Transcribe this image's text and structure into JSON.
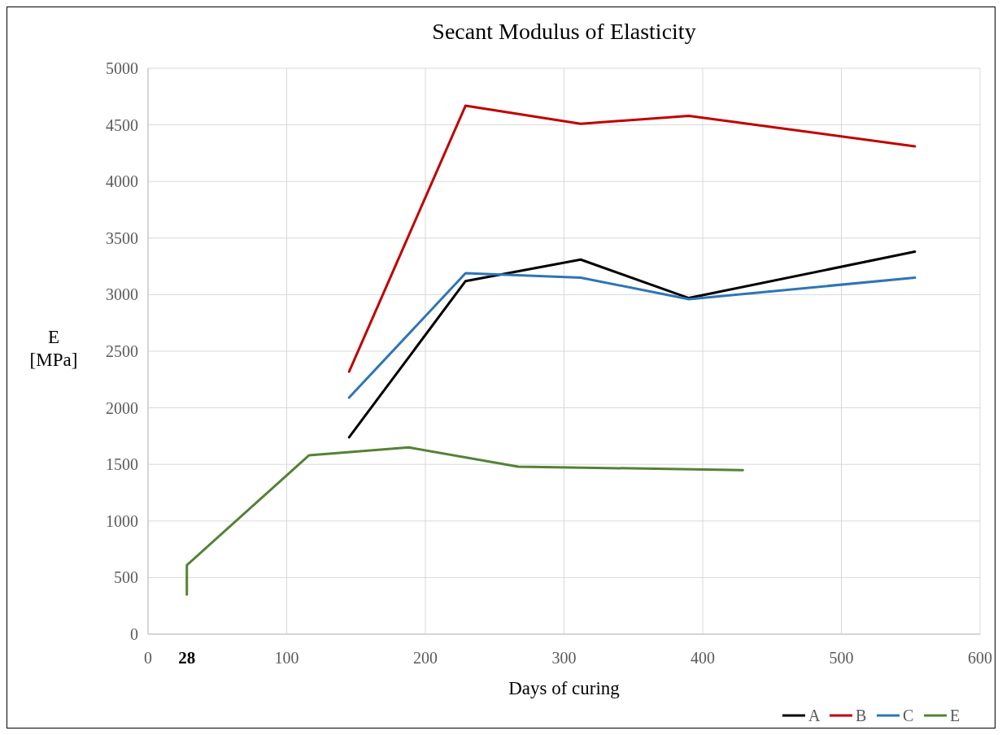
{
  "chart_data": {
    "type": "line",
    "title": "Secant Modulus of Elasticity",
    "xlabel": "Days of curing",
    "ylabel": "E\n[MPa]",
    "xlim": [
      0,
      600
    ],
    "xticks": [
      0,
      {
        "value": 28,
        "label": "28"
      },
      100,
      200,
      300,
      400,
      500,
      600
    ],
    "ylim": [
      0,
      5000
    ],
    "yticks": [
      0,
      500,
      1000,
      1500,
      2000,
      2500,
      3000,
      3500,
      4000,
      4500,
      5000
    ],
    "grid": true,
    "legend": "bottom right",
    "marker": "none",
    "line_style": "solid",
    "series": [
      {
        "name": "A",
        "color": "#000000",
        "x": [
          145,
          229,
          312,
          390,
          553
        ],
        "values": [
          1740,
          3120,
          3310,
          2970,
          3380
        ]
      },
      {
        "name": "B",
        "color": "#c00000",
        "x": [
          145,
          229,
          312,
          390,
          553
        ],
        "values": [
          2320,
          4670,
          4510,
          4580,
          4310
        ]
      },
      {
        "name": "C",
        "color": "#2e75b6",
        "x": [
          145,
          229,
          312,
          390,
          553
        ],
        "values": [
          2090,
          3190,
          3150,
          2960,
          3150
        ]
      },
      {
        "name": "E",
        "color": "#548235",
        "x": [
          28,
          28,
          116,
          188,
          267,
          429
        ],
        "values": [
          350,
          610,
          1580,
          1650,
          1480,
          1450
        ]
      }
    ]
  }
}
